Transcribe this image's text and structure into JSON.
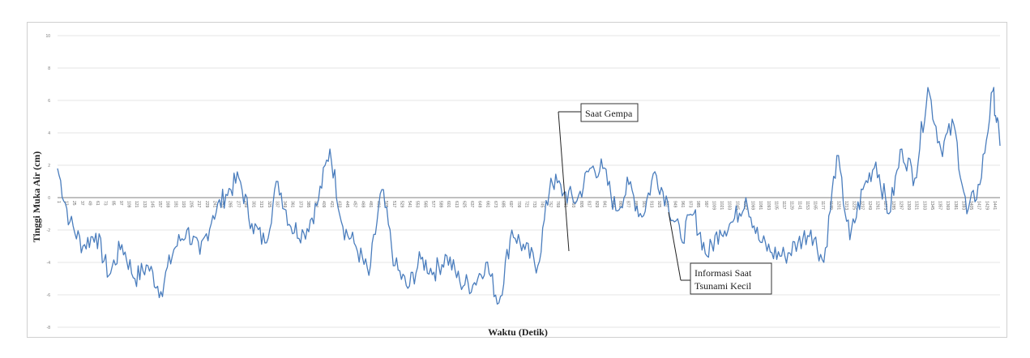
{
  "chart_data": {
    "type": "line",
    "xlabel": "Waktu (Detik)",
    "ylabel": "Tinggi Muka Air (cm)",
    "ylim": [
      -8,
      10
    ],
    "yticks": [
      -8,
      -6,
      -4,
      -2,
      0,
      2,
      4,
      6,
      8,
      10
    ],
    "xlim": [
      1,
      1451
    ],
    "grid": true,
    "legend": "none",
    "line_color": "#4a7dbd",
    "series": [
      {
        "x": [
          1,
          20,
          40,
          60,
          80,
          100,
          120,
          140,
          160,
          180,
          200,
          220,
          240,
          260,
          280,
          300,
          320,
          340,
          360,
          380,
          400,
          420,
          440,
          460,
          480,
          500,
          520,
          540,
          560,
          580,
          600,
          620,
          640,
          660,
          680,
          700,
          720,
          740,
          760,
          780,
          800,
          820,
          840,
          860,
          880,
          900,
          920,
          940,
          960,
          980,
          1000,
          1020,
          1040,
          1060,
          1080,
          1100,
          1120,
          1140,
          1160,
          1180,
          1200,
          1220,
          1240,
          1260,
          1280,
          1300,
          1320,
          1340,
          1360,
          1380,
          1400,
          1420,
          1440,
          1451
        ],
        "y": [
          1.8,
          -1.5,
          -3.0,
          -2.2,
          -4.8,
          -2.9,
          -5.0,
          -4.2,
          -5.8,
          -3.2,
          -2.0,
          -3.5,
          -1.1,
          0.2,
          1.2,
          -1.6,
          -2.8,
          1.0,
          -1.8,
          -2.2,
          -0.5,
          3.0,
          -1.8,
          -3.0,
          -4.8,
          0.5,
          -4.2,
          -5.6,
          -3.8,
          -4.6,
          -3.6,
          -5.2,
          -5.4,
          -4.0,
          -6.5,
          -2.0,
          -3.2,
          -4.2,
          1.2,
          0.3,
          -0.2,
          1.8,
          1.8,
          -0.8,
          0.8,
          -1.2,
          1.6,
          -0.3,
          -2.5,
          -1.0,
          -3.6,
          -2.0,
          -1.5,
          0.0,
          -2.6,
          -3.4,
          -3.6,
          -2.8,
          -2.0,
          -4.0,
          2.6,
          -2.6,
          0.5,
          2.2,
          -1.0,
          3.0,
          1.2,
          6.8,
          3.0,
          4.5,
          -1.0,
          0.8,
          6.6,
          3.2
        ]
      }
    ],
    "annotations": [
      {
        "text": "Saat Gempa"
      },
      {
        "text_lines": [
          "Informasi Saat",
          "Tsunami Kecil"
        ]
      }
    ]
  }
}
